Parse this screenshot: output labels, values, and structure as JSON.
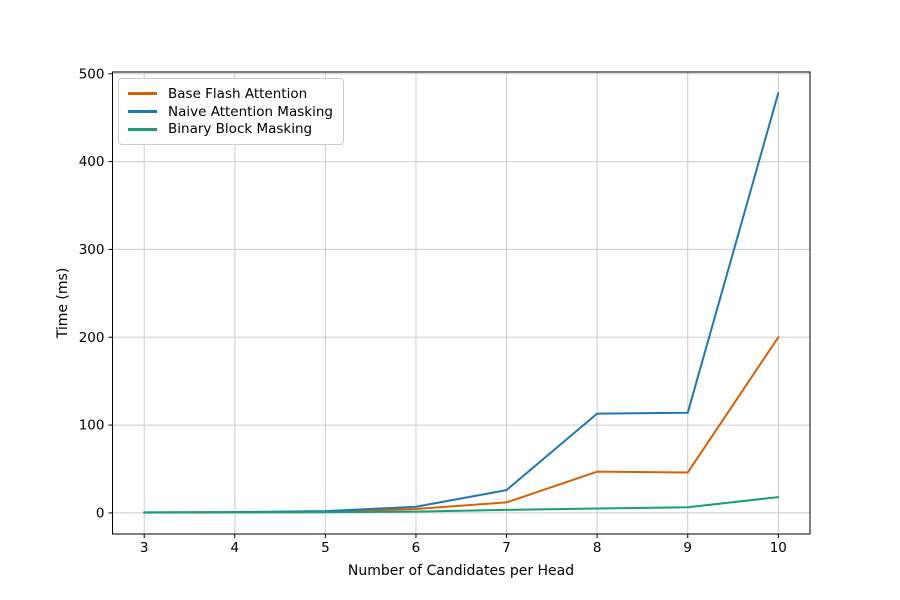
{
  "figure": {
    "background": "#ffffff"
  },
  "chart_data": {
    "type": "line",
    "title": "",
    "xlabel": "Number of Candidates per Head",
    "ylabel": "Time (ms)",
    "x": [
      3,
      4,
      5,
      6,
      7,
      8,
      9,
      10
    ],
    "series": [
      {
        "name": "Base Flash Attention",
        "color": "#d95f02",
        "values": [
          0.5,
          0.7,
          1.2,
          4.5,
          12,
          47,
          46,
          200
        ]
      },
      {
        "name": "Naive Attention Masking",
        "color": "#1f77b4",
        "values": [
          0.6,
          0.9,
          2,
          7,
          26,
          113,
          114,
          478
        ]
      },
      {
        "name": "Binary Block Masking",
        "color": "#1b9e77",
        "values": [
          0.3,
          0.5,
          0.8,
          1.5,
          3.5,
          5,
          6.5,
          18
        ]
      }
    ],
    "x_ticks": [
      3,
      4,
      5,
      6,
      7,
      8,
      9,
      10
    ],
    "y_ticks": [
      0,
      100,
      200,
      300,
      400,
      500
    ],
    "xlim": [
      2.65,
      10.35
    ],
    "ylim": [
      -24,
      502
    ],
    "grid": true,
    "grid_color": "#cccccc",
    "axis_color": "#000000",
    "text_color": "#000000",
    "legend_position": "upper-left"
  }
}
